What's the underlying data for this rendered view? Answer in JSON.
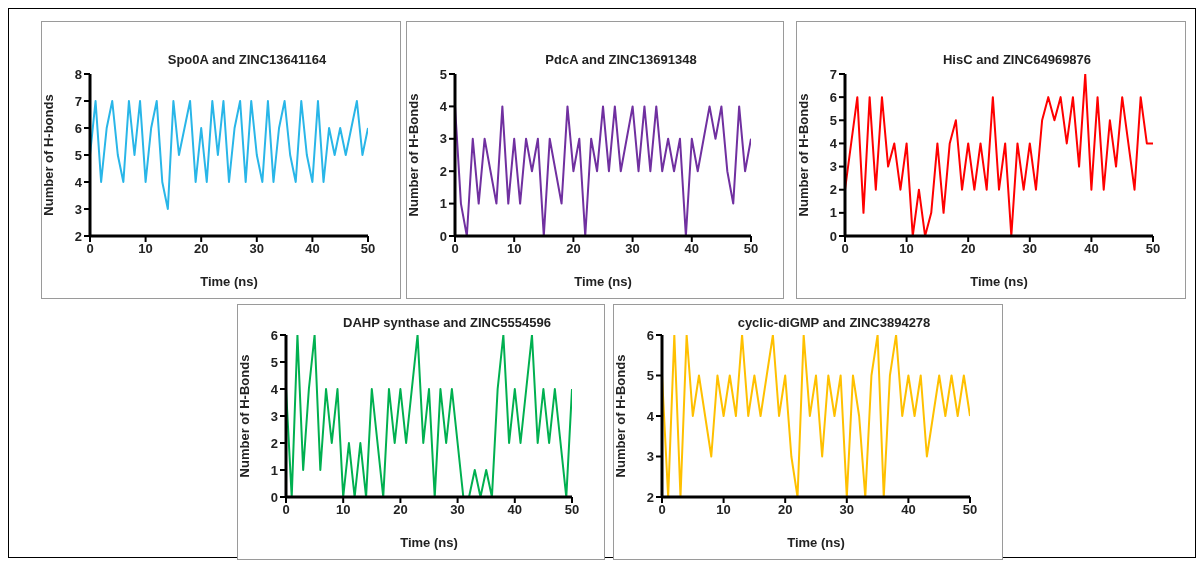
{
  "chart_data": [
    {
      "type": "line",
      "title": "Spo0A and ZINC13641164",
      "xlabel": "Time (ns)",
      "ylabel": "Number of H-bonds",
      "color": "#29b6e8",
      "xlim": [
        0,
        50
      ],
      "xticks": [
        0,
        10,
        20,
        30,
        40,
        50
      ],
      "ylim": [
        2,
        8
      ],
      "yticks": [
        2,
        3,
        4,
        5,
        6,
        7,
        8
      ],
      "x": [
        0,
        1,
        2,
        3,
        4,
        5,
        6,
        7,
        8,
        9,
        10,
        11,
        12,
        13,
        14,
        15,
        16,
        17,
        18,
        19,
        20,
        21,
        22,
        23,
        24,
        25,
        26,
        27,
        28,
        29,
        30,
        31,
        32,
        33,
        34,
        35,
        36,
        37,
        38,
        39,
        40,
        41,
        42,
        43,
        44,
        45,
        46,
        47,
        48,
        49,
        50
      ],
      "values": [
        5,
        7,
        4,
        6,
        7,
        5,
        4,
        7,
        5,
        7,
        4,
        6,
        7,
        4,
        3,
        7,
        5,
        6,
        7,
        4,
        6,
        4,
        7,
        5,
        7,
        4,
        6,
        7,
        4,
        7,
        5,
        4,
        7,
        4,
        6,
        7,
        5,
        4,
        7,
        5,
        4,
        7,
        4,
        6,
        5,
        6,
        5,
        6,
        7,
        5,
        6
      ]
    },
    {
      "type": "line",
      "title": "PdcA and ZINC13691348",
      "xlabel": "Time (ns)",
      "ylabel": "Number of H-Bonds",
      "color": "#7030a0",
      "xlim": [
        0,
        50
      ],
      "xticks": [
        0,
        10,
        20,
        30,
        40,
        50
      ],
      "ylim": [
        0,
        5
      ],
      "yticks": [
        0,
        1,
        2,
        3,
        4,
        5
      ],
      "x": [
        0,
        1,
        2,
        3,
        4,
        5,
        6,
        7,
        8,
        9,
        10,
        11,
        12,
        13,
        14,
        15,
        16,
        17,
        18,
        19,
        20,
        21,
        22,
        23,
        24,
        25,
        26,
        27,
        28,
        29,
        30,
        31,
        32,
        33,
        34,
        35,
        36,
        37,
        38,
        39,
        40,
        41,
        42,
        43,
        44,
        45,
        46,
        47,
        48,
        49,
        50
      ],
      "values": [
        4,
        1,
        0,
        3,
        1,
        3,
        2,
        1,
        4,
        1,
        3,
        1,
        3,
        2,
        3,
        0,
        3,
        2,
        1,
        4,
        2,
        3,
        0,
        3,
        2,
        4,
        2,
        4,
        2,
        3,
        4,
        2,
        4,
        2,
        4,
        2,
        3,
        2,
        3,
        0,
        3,
        2,
        3,
        4,
        3,
        4,
        2,
        1,
        4,
        2,
        3
      ]
    },
    {
      "type": "line",
      "title": "HisC and ZINC64969876",
      "xlabel": "Time (ns)",
      "ylabel": "Number of H-Bonds",
      "color": "#ff0000",
      "xlim": [
        0,
        50
      ],
      "xticks": [
        0,
        10,
        20,
        30,
        40,
        50
      ],
      "ylim": [
        0,
        7
      ],
      "yticks": [
        0,
        1,
        2,
        3,
        4,
        5,
        6,
        7
      ],
      "x": [
        0,
        1,
        2,
        3,
        4,
        5,
        6,
        7,
        8,
        9,
        10,
        11,
        12,
        13,
        14,
        15,
        16,
        17,
        18,
        19,
        20,
        21,
        22,
        23,
        24,
        25,
        26,
        27,
        28,
        29,
        30,
        31,
        32,
        33,
        34,
        35,
        36,
        37,
        38,
        39,
        40,
        41,
        42,
        43,
        44,
        45,
        46,
        47,
        48,
        49,
        50
      ],
      "values": [
        2,
        4,
        6,
        1,
        6,
        2,
        6,
        3,
        4,
        2,
        4,
        0,
        2,
        0,
        1,
        4,
        1,
        4,
        5,
        2,
        4,
        2,
        4,
        2,
        6,
        2,
        4,
        0,
        4,
        2,
        4,
        2,
        5,
        6,
        5,
        6,
        4,
        6,
        3,
        7,
        2,
        6,
        2,
        5,
        3,
        6,
        4,
        2,
        6,
        4,
        4
      ]
    },
    {
      "type": "line",
      "title": "DAHP synthase and ZINC5554596",
      "xlabel": "Time (ns)",
      "ylabel": "Number of H-Bonds",
      "color": "#00b050",
      "xlim": [
        0,
        50
      ],
      "xticks": [
        0,
        10,
        20,
        30,
        40,
        50
      ],
      "ylim": [
        0,
        6
      ],
      "yticks": [
        0,
        1,
        2,
        3,
        4,
        5,
        6
      ],
      "x": [
        0,
        1,
        2,
        3,
        4,
        5,
        6,
        7,
        8,
        9,
        10,
        11,
        12,
        13,
        14,
        15,
        16,
        17,
        18,
        19,
        20,
        21,
        22,
        23,
        24,
        25,
        26,
        27,
        28,
        29,
        30,
        31,
        32,
        33,
        34,
        35,
        36,
        37,
        38,
        39,
        40,
        41,
        42,
        43,
        44,
        45,
        46,
        47,
        48,
        49,
        50
      ],
      "values": [
        4,
        0,
        6,
        1,
        4,
        6,
        1,
        4,
        2,
        4,
        0,
        2,
        0,
        2,
        0,
        4,
        2,
        0,
        4,
        2,
        4,
        2,
        4,
        6,
        2,
        4,
        0,
        4,
        2,
        4,
        2,
        0,
        0,
        1,
        0,
        1,
        0,
        4,
        6,
        2,
        4,
        2,
        4,
        6,
        2,
        4,
        2,
        4,
        2,
        0,
        4
      ]
    },
    {
      "type": "line",
      "title": "cyclic-diGMP and ZINC3894278",
      "xlabel": "Time (ns)",
      "ylabel": "Number of H-Bonds",
      "color": "#ffc000",
      "xlim": [
        0,
        50
      ],
      "xticks": [
        0,
        10,
        20,
        30,
        40,
        50
      ],
      "ylim": [
        2,
        6
      ],
      "yticks": [
        2,
        3,
        4,
        5,
        6
      ],
      "x": [
        0,
        1,
        2,
        3,
        4,
        5,
        6,
        7,
        8,
        9,
        10,
        11,
        12,
        13,
        14,
        15,
        16,
        17,
        18,
        19,
        20,
        21,
        22,
        23,
        24,
        25,
        26,
        27,
        28,
        29,
        30,
        31,
        32,
        33,
        34,
        35,
        36,
        37,
        38,
        39,
        40,
        41,
        42,
        43,
        44,
        45,
        46,
        47,
        48,
        49,
        50
      ],
      "values": [
        5,
        2,
        6,
        2,
        6,
        4,
        5,
        4,
        3,
        5,
        4,
        5,
        4,
        6,
        4,
        5,
        4,
        5,
        6,
        4,
        5,
        3,
        2,
        6,
        4,
        5,
        3,
        5,
        4,
        5,
        2,
        5,
        4,
        2,
        5,
        6,
        2,
        5,
        6,
        4,
        5,
        4,
        5,
        3,
        4,
        5,
        4,
        5,
        4,
        5,
        4
      ]
    }
  ]
}
